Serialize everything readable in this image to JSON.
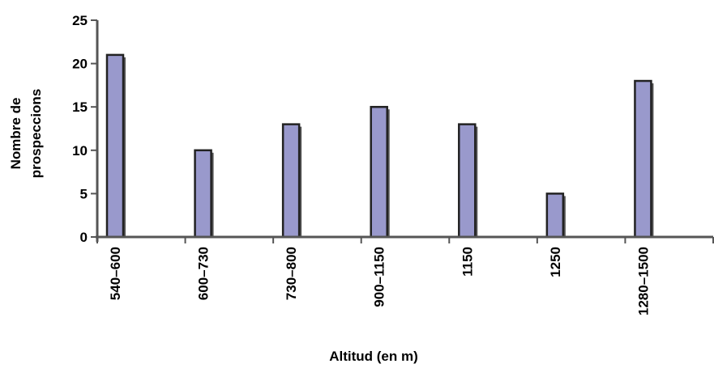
{
  "chart_data": {
    "type": "bar",
    "categories": [
      "540–600",
      "600–730",
      "730–800",
      "900–1150",
      "1150",
      "1250",
      "1280–1500"
    ],
    "values": [
      21,
      10,
      13,
      15,
      13,
      5,
      18
    ],
    "title": "",
    "xlabel": "Altitud (en m)",
    "ylabel": [
      "Nombre de",
      "prospeccions"
    ],
    "ylim": [
      0,
      25
    ],
    "yticks": [
      0,
      5,
      10,
      15,
      20,
      25
    ],
    "grid": false,
    "legend": "none",
    "colors": {
      "bar_fill": "#9999cc",
      "bar_stroke": "#222222",
      "bar_shadow": "#555555",
      "axis": "#555555"
    }
  }
}
